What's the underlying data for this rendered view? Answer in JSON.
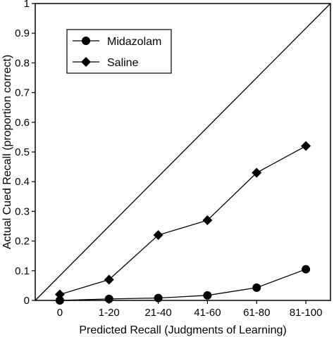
{
  "chart_data": {
    "type": "line",
    "title": "",
    "xlabel": "Predicted Recall (Judgments of Learning)",
    "ylabel": "Actual Cued Recall (proportion correct)",
    "categories": [
      "0",
      "1-20",
      "21-40",
      "41-60",
      "61-80",
      "81-100"
    ],
    "ylim": [
      0,
      1
    ],
    "yticks": [
      "0",
      "0.1",
      "0.2",
      "0.3",
      "0.4",
      "0.5",
      "0.6",
      "0.7",
      "0.8",
      "0.9",
      "1"
    ],
    "grid": false,
    "legend_position": "top-left",
    "reference_line": "diagonal from (0,0) to top-right corner",
    "series": [
      {
        "name": "Midazolam",
        "marker": "circle",
        "values": [
          0.0,
          0.005,
          0.008,
          0.017,
          0.043,
          0.105
        ]
      },
      {
        "name": "Saline",
        "marker": "diamond",
        "values": [
          0.02,
          0.07,
          0.22,
          0.27,
          0.43,
          0.52
        ]
      }
    ]
  }
}
